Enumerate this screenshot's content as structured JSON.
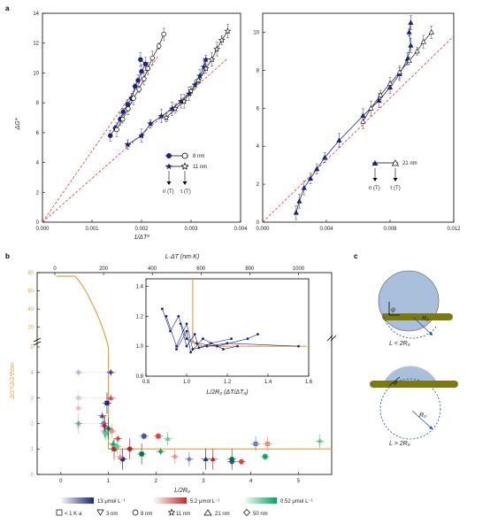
{
  "panel_labels": {
    "a": "a",
    "b": "b",
    "c": "c"
  },
  "colors": {
    "navy": "#1a237e",
    "orange_line": "#e8a03a",
    "red_dash": "#e05050",
    "blue_set": [
      "#3949ab",
      "#6d77c6",
      "#1a237e"
    ],
    "red_set": [
      "#e53935",
      "#ef8a80",
      "#b71c1c"
    ],
    "green_set": [
      "#00a65a",
      "#55c98a",
      "#006b3a"
    ],
    "sphere_fill": "#a9bfdc",
    "substrate": "#7a7a10"
  },
  "chart_data": [
    {
      "id": "a-left",
      "type": "scatter",
      "xlabel": "1/ΔT²",
      "ylabel": "ΔG*",
      "xlim": [
        0,
        0.004
      ],
      "ylim": [
        0,
        14
      ],
      "xticks": [
        "0.000",
        "0.001",
        "0.002",
        "0.003",
        "0.004"
      ],
      "yticks": [
        "0",
        "2",
        "4",
        "6",
        "8",
        "10",
        "12",
        "14"
      ],
      "legend_rows": [
        {
          "label": "8 nm",
          "filled_marker": "circle",
          "open_marker": "circle"
        },
        {
          "label": "11 nm",
          "filled_marker": "star",
          "open_marker": "star"
        }
      ],
      "legend_annotations": [
        "n (T)",
        "τ (T)"
      ],
      "series": [
        {
          "name": "8 nm",
          "marker": "circle",
          "filled": true,
          "points": [
            [
              0.00137,
              5.8
            ],
            [
              0.00147,
              6.3
            ],
            [
              0.00157,
              6.9
            ],
            [
              0.00163,
              7.4
            ],
            [
              0.00172,
              7.9
            ],
            [
              0.0018,
              8.3
            ],
            [
              0.00187,
              9.1
            ],
            [
              0.00193,
              9.5
            ],
            [
              0.002,
              10.1
            ],
            [
              0.00208,
              10.6
            ],
            [
              0.00198,
              10.9
            ]
          ]
        },
        {
          "name": "8 nm",
          "marker": "circle",
          "filled": false,
          "points": [
            [
              0.0015,
              6.2
            ],
            [
              0.00162,
              6.9
            ],
            [
              0.00173,
              7.6
            ],
            [
              0.00184,
              8.3
            ],
            [
              0.00195,
              8.9
            ],
            [
              0.00205,
              9.6
            ],
            [
              0.00213,
              10.3
            ],
            [
              0.00222,
              11.0
            ],
            [
              0.00235,
              11.8
            ],
            [
              0.00245,
              12.6
            ]
          ]
        },
        {
          "name": "11 nm",
          "marker": "star",
          "filled": true,
          "points": [
            [
              0.00172,
              5.2
            ],
            [
              0.002,
              5.8
            ],
            [
              0.00218,
              6.6
            ],
            [
              0.0024,
              7.1
            ],
            [
              0.00262,
              7.6
            ],
            [
              0.0028,
              8.1
            ],
            [
              0.00296,
              8.6
            ],
            [
              0.00308,
              9.2
            ],
            [
              0.00318,
              9.8
            ],
            [
              0.00326,
              10.4
            ],
            [
              0.0033,
              10.9
            ]
          ]
        },
        {
          "name": "11 nm",
          "marker": "star",
          "filled": false,
          "points": [
            [
              0.0025,
              7.0
            ],
            [
              0.00268,
              7.6
            ],
            [
              0.00286,
              8.1
            ],
            [
              0.003,
              8.8
            ],
            [
              0.00315,
              9.5
            ],
            [
              0.0033,
              10.3
            ],
            [
              0.00342,
              10.9
            ],
            [
              0.00352,
              11.6
            ],
            [
              0.00362,
              12.2
            ],
            [
              0.00374,
              12.8
            ]
          ]
        }
      ],
      "dashed_lines": [
        {
          "from": [
            0,
            0
          ],
          "to": [
            0.00235,
            11.2
          ]
        },
        {
          "from": [
            0,
            0
          ],
          "to": [
            0.00375,
            11.0
          ]
        }
      ]
    },
    {
      "id": "a-right",
      "type": "scatter",
      "xlabel": "1/ΔT²",
      "ylabel": "",
      "xlim": [
        0,
        0.012
      ],
      "ylim": [
        0,
        11
      ],
      "xticks": [
        "0.000",
        "0.004",
        "0.008",
        "0.012"
      ],
      "yticks": [
        "0",
        "2",
        "4",
        "6",
        "8",
        "10"
      ],
      "legend_rows": [
        {
          "label": "21 nm",
          "filled_marker": "triangle",
          "open_marker": "triangle"
        }
      ],
      "legend_annotations": [
        "n (T)",
        "τ (T)"
      ],
      "series": [
        {
          "name": "21 nm",
          "marker": "triangle",
          "filled": true,
          "points": [
            [
              0.0021,
              0.5
            ],
            [
              0.0023,
              1.1
            ],
            [
              0.0026,
              1.8
            ],
            [
              0.003,
              2.3
            ],
            [
              0.0034,
              2.8
            ],
            [
              0.0039,
              3.4
            ],
            [
              0.0048,
              4.3
            ],
            [
              0.0063,
              5.6
            ],
            [
              0.0073,
              6.4
            ],
            [
              0.008,
              7.1
            ],
            [
              0.0086,
              7.8
            ],
            [
              0.0091,
              8.6
            ],
            [
              0.0093,
              9.3
            ],
            [
              0.0092,
              10.0
            ],
            [
              0.0093,
              10.5
            ]
          ]
        },
        {
          "name": "21 nm",
          "marker": "triangle",
          "filled": false,
          "points": [
            [
              0.0063,
              5.3
            ],
            [
              0.0068,
              6.0
            ],
            [
              0.0074,
              6.7
            ],
            [
              0.008,
              7.3
            ],
            [
              0.0086,
              7.9
            ],
            [
              0.0092,
              8.5
            ],
            [
              0.0097,
              9.0
            ],
            [
              0.0101,
              9.5
            ],
            [
              0.0106,
              10.0
            ]
          ]
        }
      ],
      "dashed_lines": [
        {
          "from": [
            0,
            0
          ],
          "to": [
            0.012,
            9.8
          ]
        }
      ]
    },
    {
      "id": "b-main",
      "type": "scatter",
      "xlabel": "L/2R₀",
      "ylabel": "ΔG*/ΔG*hom",
      "top_axis_label": "L·ΔT (nm·K)",
      "xlim": [
        -0.5,
        5.7
      ],
      "ylim": [
        0,
        5
      ],
      "xticks": [
        "0",
        "1",
        "2",
        "3",
        "4",
        "5"
      ],
      "top_ticks": [
        "0",
        "200",
        "400",
        "600",
        "800",
        "1000"
      ],
      "yticks_lower": [
        "0",
        "1",
        "2",
        "3",
        "4",
        "5"
      ],
      "yticks_upper": [
        "20",
        "40",
        "60",
        "80"
      ],
      "legend_scales": [
        "13 μmol L⁻¹",
        "5.2 μmol L⁻¹",
        "0.52 μmol L⁻¹"
      ],
      "legend_markers": [
        "< 1 K·a",
        "3 nm",
        "8 nm",
        "11 nm",
        "21 nm",
        "50 nm"
      ],
      "series": [
        {
          "name": "13 μmol L⁻¹",
          "color": "blue",
          "points": [
            [
              0.37,
              4.0
            ],
            [
              0.37,
              3.0
            ],
            [
              0.37,
              2.0
            ],
            [
              0.87,
              2.3
            ],
            [
              0.9,
              2.0
            ],
            [
              0.97,
              2.8
            ],
            [
              1.05,
              4.0
            ],
            [
              0.93,
              1.7
            ],
            [
              1.3,
              0.6
            ],
            [
              1.75,
              1.5
            ],
            [
              2.7,
              0.6
            ],
            [
              3.05,
              0.6
            ],
            [
              3.6,
              0.5
            ],
            [
              4.1,
              1.2
            ]
          ]
        },
        {
          "name": "5.2 μmol L⁻¹",
          "color": "red",
          "points": [
            [
              0.37,
              2.6
            ],
            [
              0.37,
              1.9
            ],
            [
              0.92,
              1.9
            ],
            [
              1.05,
              3.0
            ],
            [
              1.07,
              1.7
            ],
            [
              1.12,
              1.0
            ],
            [
              1.2,
              1.4
            ],
            [
              1.25,
              0.7
            ],
            [
              1.45,
              1.0
            ],
            [
              2.05,
              1.5
            ],
            [
              2.4,
              0.7
            ],
            [
              3.2,
              0.6
            ],
            [
              3.8,
              0.5
            ],
            [
              4.35,
              1.2
            ]
          ]
        },
        {
          "name": "0.52 μmol L⁻¹",
          "color": "green",
          "points": [
            [
              0.37,
              2.0
            ],
            [
              0.95,
              1.6
            ],
            [
              1.0,
              1.8
            ],
            [
              1.1,
              1.2
            ],
            [
              1.18,
              1.1
            ],
            [
              1.7,
              0.8
            ],
            [
              2.1,
              0.9
            ],
            [
              2.25,
              1.4
            ],
            [
              3.6,
              0.6
            ],
            [
              4.3,
              0.7
            ],
            [
              5.45,
              1.3
            ]
          ]
        }
      ],
      "inset": {
        "xlabel": "L/2R₀ (ΔT/ΔT₀)",
        "xlim": [
          0.8,
          1.6
        ],
        "ylim": [
          0.8,
          1.45
        ],
        "xticks": [
          "0.8",
          "1.0",
          "1.2",
          "1.4",
          "1.6"
        ],
        "yticks": [
          "0.8",
          "1.0",
          "1.2",
          "1.4"
        ]
      }
    }
  ],
  "panel_c": {
    "top": {
      "radius_label": "R₀",
      "angle_label": "ψ",
      "condition": "L < 2R₀"
    },
    "bottom": {
      "radius_label": "R₀",
      "angle_label": "φ",
      "condition": "L > 2R₀"
    }
  }
}
